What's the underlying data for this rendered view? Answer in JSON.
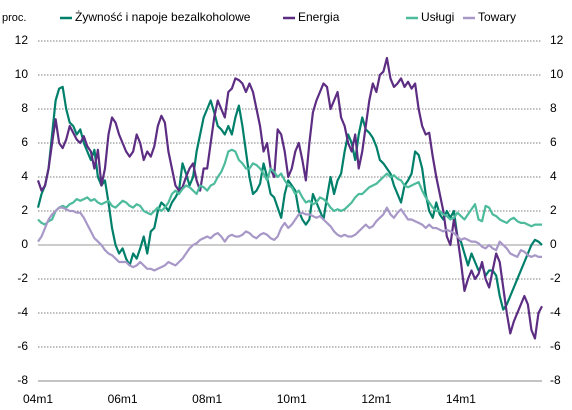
{
  "chart_data": {
    "type": "line",
    "ylabel": "proc.",
    "categories": [
      "04m1",
      null,
      null,
      null,
      null,
      null,
      null,
      null,
      null,
      null,
      null,
      null,
      null,
      null,
      null,
      null,
      null,
      null,
      null,
      null,
      null,
      null,
      null,
      null,
      "06m1",
      null,
      null,
      null,
      null,
      null,
      null,
      null,
      null,
      null,
      null,
      null,
      null,
      null,
      null,
      null,
      null,
      null,
      null,
      null,
      null,
      null,
      null,
      null,
      "08m1",
      null,
      null,
      null,
      null,
      null,
      null,
      null,
      null,
      null,
      null,
      null,
      null,
      null,
      null,
      null,
      null,
      null,
      null,
      null,
      null,
      null,
      null,
      null,
      "10m1",
      null,
      null,
      null,
      null,
      null,
      null,
      null,
      null,
      null,
      null,
      null,
      null,
      null,
      null,
      null,
      null,
      null,
      null,
      null,
      null,
      null,
      null,
      null,
      "12m1",
      null,
      null,
      null,
      null,
      null,
      null,
      null,
      null,
      null,
      null,
      null,
      null,
      null,
      null,
      null,
      null,
      null,
      null,
      null,
      null,
      null,
      null,
      null,
      "14m1",
      null,
      null,
      null,
      null,
      null,
      null,
      null,
      null,
      null,
      null,
      null,
      null,
      null,
      null,
      null,
      null,
      null,
      null,
      null,
      null,
      null,
      null,
      null
    ],
    "series": [
      {
        "name": "Żywność i napoje bezalkoholowe",
        "color": "#00806a",
        "values": [
          2.2,
          3.0,
          3.5,
          4.5,
          6.5,
          8.5,
          9.2,
          9.3,
          8.0,
          7.2,
          7.0,
          6.5,
          6.8,
          6.0,
          5.5,
          5.0,
          5.6,
          4.0,
          3.5,
          3.8,
          2.5,
          1.0,
          0.0,
          -0.5,
          -0.2,
          -0.8,
          -1.2,
          -0.5,
          -0.8,
          -0.2,
          0.5,
          -0.5,
          0.8,
          1.0,
          2.0,
          2.5,
          2.3,
          2.0,
          2.5,
          2.8,
          3.2,
          4.8,
          4.2,
          3.5,
          4.0,
          5.5,
          6.5,
          7.5,
          8.0,
          8.5,
          7.8,
          7.0,
          6.8,
          6.5,
          7.0,
          6.5,
          7.5,
          8.2,
          7.0,
          5.5,
          4.0,
          3.0,
          3.2,
          3.6,
          4.8,
          4.0,
          3.0,
          2.8,
          2.2,
          1.6,
          3.0,
          3.8,
          3.5,
          3.2,
          2.0,
          1.5,
          1.2,
          1.5,
          3.0,
          2.5,
          2.0,
          1.5,
          2.8,
          4.0,
          3.0,
          3.8,
          4.2,
          5.5,
          6.5,
          6.0,
          5.0,
          6.5,
          7.5,
          6.8,
          6.6,
          6.3,
          5.8,
          5.0,
          4.8,
          4.5,
          4.2,
          3.5,
          3.0,
          2.5,
          3.5,
          3.8,
          4.2,
          5.5,
          5.3,
          4.5,
          3.0,
          2.0,
          1.6,
          2.5,
          1.8,
          1.5,
          2.0,
          1.6,
          2.0,
          0.5,
          0.2,
          -0.5,
          -1.2,
          -0.5,
          -1.0,
          -1.5,
          -1.2,
          -1.8,
          -1.5,
          -1.5,
          -1.8,
          -3.0,
          -3.8,
          -3.5,
          -3.0,
          -2.5,
          -2.0,
          -1.5,
          -1.0,
          -0.5,
          0.0,
          0.3,
          0.2,
          0.0
        ]
      },
      {
        "name": "Energia",
        "color": "#5c2d82",
        "values": [
          3.8,
          3.2,
          3.5,
          4.5,
          6.0,
          7.4,
          6.0,
          5.7,
          6.2,
          7.0,
          6.6,
          6.2,
          6.0,
          6.4,
          5.8,
          5.5,
          4.5,
          5.6,
          3.5,
          4.5,
          6.5,
          7.5,
          7.2,
          6.5,
          6.0,
          5.5,
          5.2,
          5.5,
          6.5,
          6.0,
          5.0,
          5.5,
          5.2,
          5.8,
          7.0,
          7.6,
          7.2,
          5.5,
          4.5,
          3.5,
          3.2,
          3.4,
          4.0,
          4.5,
          4.8,
          3.8,
          3.2,
          4.5,
          4.5,
          6.0,
          7.5,
          8.5,
          8.0,
          7.5,
          9.0,
          9.2,
          9.8,
          9.7,
          9.5,
          9.0,
          9.5,
          9.0,
          8.0,
          7.0,
          5.5,
          6.0,
          4.5,
          4.0,
          6.8,
          6.5,
          5.5,
          4.0,
          4.5,
          5.5,
          6.0,
          5.0,
          3.8,
          6.0,
          7.8,
          8.5,
          9.0,
          9.5,
          9.3,
          8.0,
          8.5,
          9.0,
          7.5,
          7.0,
          6.0,
          5.5,
          6.5,
          4.5,
          5.5,
          7.0,
          8.5,
          9.5,
          9.0,
          10.0,
          10.2,
          11.0,
          9.8,
          9.3,
          9.5,
          9.8,
          9.3,
          9.6,
          9.2,
          9.5,
          8.0,
          7.0,
          6.5,
          6.6,
          5.2,
          4.0,
          3.0,
          2.0,
          0.5,
          0.0,
          1.5,
          0.5,
          -1.0,
          -2.7,
          -2.0,
          -1.5,
          -2.0,
          -1.7,
          -1.0,
          -2.0,
          -2.5,
          -1.5,
          -0.5,
          -1.0,
          -2.5,
          -4.0,
          -5.2,
          -4.5,
          -4.0,
          -3.5,
          -3.0,
          -3.5,
          -5.0,
          -5.5,
          -4.0,
          -3.6
        ]
      },
      {
        "name": "Usługi",
        "color": "#4dbb9c",
        "values": [
          1.5,
          1.3,
          1.2,
          1.4,
          1.5,
          2.0,
          2.2,
          2.3,
          2.2,
          2.4,
          2.5,
          2.7,
          2.6,
          2.7,
          2.8,
          2.6,
          2.7,
          2.5,
          2.4,
          2.5,
          2.6,
          2.3,
          2.2,
          2.4,
          2.6,
          2.5,
          2.3,
          2.2,
          2.4,
          2.3,
          2.0,
          1.9,
          1.8,
          2.0,
          2.2,
          2.0,
          2.2,
          2.5,
          3.0,
          3.2,
          3.0,
          3.3,
          3.5,
          3.4,
          3.2,
          3.0,
          3.5,
          3.4,
          3.2,
          3.5,
          3.6,
          4.0,
          4.3,
          4.8,
          5.5,
          5.6,
          5.5,
          5.0,
          4.8,
          4.5,
          4.5,
          4.8,
          4.7,
          4.5,
          4.2,
          3.8,
          4.5,
          4.3,
          4.0,
          4.2,
          3.8,
          3.5,
          3.4,
          3.0,
          3.2,
          2.8,
          2.5,
          2.6,
          2.4,
          2.5,
          2.8,
          2.7,
          2.5,
          2.2,
          2.0,
          2.1,
          2.0,
          2.1,
          2.3,
          2.5,
          2.8,
          3.0,
          3.0,
          3.2,
          3.4,
          3.5,
          3.6,
          3.8,
          4.0,
          4.2,
          4.0,
          4.1,
          3.9,
          3.8,
          3.5,
          3.4,
          3.5,
          3.6,
          3.7,
          3.2,
          2.8,
          2.5,
          2.2,
          2.0,
          2.0,
          1.8,
          1.7,
          1.5,
          1.6,
          1.9,
          1.7,
          1.5,
          1.8,
          2.1,
          2.4,
          1.5,
          1.4,
          2.3,
          2.2,
          1.8,
          1.7,
          1.5,
          1.4,
          1.3,
          1.5,
          1.6,
          1.4,
          1.3,
          1.3,
          1.2,
          1.1,
          1.2,
          1.2,
          1.2
        ]
      },
      {
        "name": "Towary",
        "color": "#a898c8",
        "values": [
          0.2,
          0.5,
          1.0,
          1.5,
          1.8,
          2.0,
          2.2,
          2.2,
          2.1,
          2.0,
          2.0,
          1.9,
          1.9,
          1.6,
          1.2,
          0.8,
          0.4,
          0.2,
          0.0,
          -0.3,
          -0.5,
          -0.6,
          -0.8,
          -1.0,
          -1.0,
          -1.0,
          -1.2,
          -1.3,
          -1.2,
          -1.0,
          -1.2,
          -1.4,
          -1.4,
          -1.5,
          -1.4,
          -1.3,
          -1.2,
          -1.0,
          -1.1,
          -1.2,
          -1.0,
          -0.8,
          -0.5,
          -0.2,
          0.0,
          0.1,
          0.3,
          0.4,
          0.5,
          0.4,
          0.6,
          0.7,
          0.5,
          0.2,
          0.5,
          0.6,
          0.5,
          0.5,
          0.6,
          0.8,
          0.7,
          0.5,
          0.4,
          0.6,
          0.7,
          0.6,
          0.4,
          0.3,
          0.5,
          1.0,
          1.3,
          1.0,
          1.2,
          1.5,
          1.8,
          1.9,
          1.8,
          1.8,
          1.7,
          1.6,
          1.7,
          1.5,
          1.3,
          1.1,
          0.8,
          0.6,
          0.5,
          0.6,
          0.5,
          0.5,
          0.6,
          0.8,
          1.0,
          1.2,
          1.0,
          1.1,
          1.4,
          1.6,
          1.8,
          2.2,
          1.8,
          1.6,
          1.9,
          2.1,
          1.8,
          1.5,
          1.5,
          1.4,
          1.3,
          1.2,
          1.0,
          1.2,
          1.0,
          1.0,
          0.9,
          0.8,
          0.9,
          0.8,
          0.7,
          0.5,
          0.3,
          0.4,
          0.3,
          0.2,
          0.2,
          0.1,
          -0.1,
          -0.2,
          0.0,
          -0.2,
          -0.3,
          0.2,
          0.0,
          -0.2,
          -0.5,
          -0.6,
          -0.7,
          -0.3,
          -0.4,
          -0.6,
          -0.7,
          -0.6,
          -0.7,
          -0.7
        ]
      }
    ],
    "ylim": [
      -8,
      12
    ],
    "yticks": [
      -8,
      -6,
      -4,
      -2,
      0,
      2,
      4,
      6,
      8,
      10,
      12
    ],
    "y2lim": [
      -8,
      12
    ],
    "y2ticks": [
      -8,
      -6,
      -4,
      -2,
      0,
      2,
      4,
      6,
      8,
      10,
      12
    ],
    "grid": true,
    "legend": "top"
  }
}
